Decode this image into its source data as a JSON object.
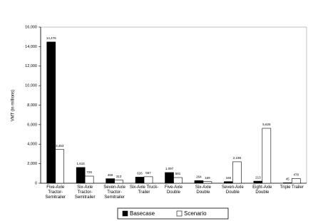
{
  "chart_data": {
    "type": "bar",
    "y_label": "VMT (in millions)",
    "categories": [
      "Five-Axle Tractor-Semitrailer",
      "Six-Axle Tractor-Semitrailer",
      "Seven-Axle Tractor-Semitrailer",
      "Six-Axle Truck-Trailer",
      "Five-Axle Double",
      "Six-Axle Double",
      "Seven-Axle Double",
      "Eight-Axle Double",
      "Triple Trailer"
    ],
    "series": [
      {
        "name": "Basecase",
        "color": "#000000",
        "values": [
          14476,
          1615,
          466,
          626,
          1097,
          264,
          166,
          213,
          45
        ],
        "value_labels": [
          "14,476",
          "1,615",
          "466",
          "626",
          "1,097",
          "264",
          "166",
          "213",
          "45"
        ]
      },
      {
        "name": "Scenario",
        "color": "#ffffff",
        "values": [
          3453,
          729,
          313,
          667,
          581,
          169,
          2198,
          5626,
          478
        ],
        "value_labels": [
          "3,453",
          "729",
          "313",
          "667",
          "581",
          "169",
          "2,198",
          "5,626",
          "478"
        ]
      }
    ],
    "ylim": [
      0,
      16000
    ],
    "yticks": [
      0,
      {
        "value": 2000,
        "label": "2,000"
      },
      {
        "value": 4000,
        "label": "4,000"
      },
      {
        "value": 6000,
        "label": "6,000"
      },
      {
        "value": 8000,
        "label": "8,000"
      },
      {
        "value": 10000,
        "label": "10,000"
      },
      {
        "value": 12000,
        "label": "12,000"
      },
      {
        "value": 14000,
        "label": "14,000"
      },
      {
        "value": 16000,
        "label": "16,000"
      }
    ],
    "legend": "bottom"
  }
}
